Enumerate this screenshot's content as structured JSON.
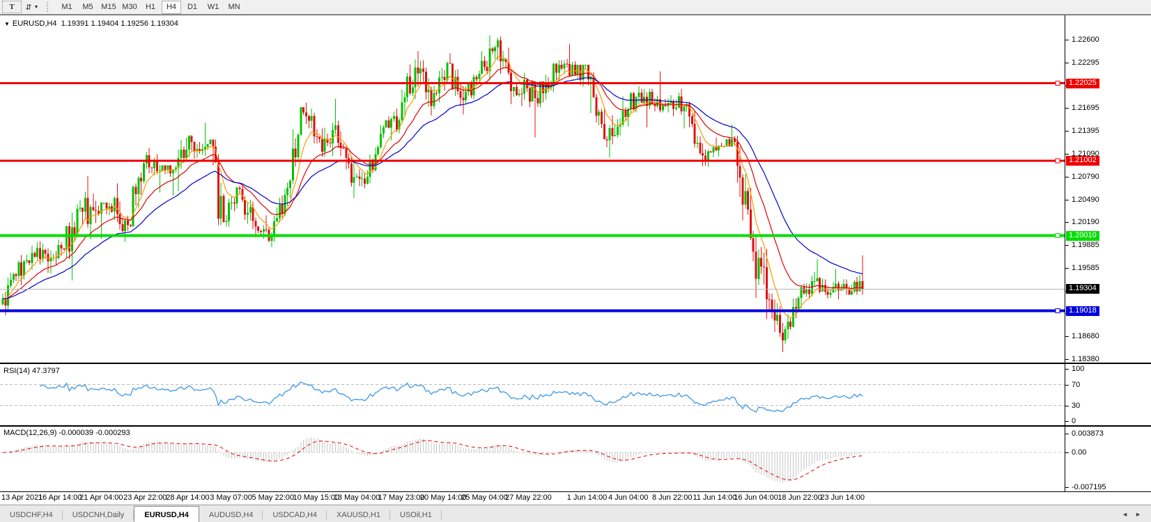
{
  "toolbar": {
    "text_tool_label": "T",
    "arrange_icon": "double-arrow",
    "timeframes": [
      "M1",
      "M5",
      "M15",
      "M30",
      "H1",
      "H4",
      "D1",
      "W1",
      "MN"
    ],
    "active_timeframe": "H4"
  },
  "chart_header": {
    "symbol": "EURUSD,H4",
    "ohlc": "1.19391 1.19404 1.19256 1.19304",
    "open": "1.19391",
    "high": "1.19404",
    "low": "1.19256",
    "close": "1.19304"
  },
  "price_axis": {
    "ticks": [
      "1.22600",
      "1.22295",
      "1.21995",
      "1.21695",
      "1.21395",
      "1.21090",
      "1.20790",
      "1.20490",
      "1.20190",
      "1.19885",
      "1.19585",
      "1.19285",
      "1.18985",
      "1.18680",
      "1.18380"
    ]
  },
  "rsi_panel": {
    "label": "RSI(14) 47.3797",
    "ticks": [
      "100",
      "70",
      "30",
      "0"
    ]
  },
  "macd_panel": {
    "label": "MACD(12,26,9) -0.000039 -0.000293",
    "ticks": [
      "0.003873",
      "0.00",
      "-0.007195"
    ]
  },
  "time_axis": {
    "labels": [
      "13 Apr 2021",
      "16 Apr 14:00",
      "21 Apr 04:00",
      "23 Apr 22:00",
      "28 Apr 14:00",
      "3 May 07:00",
      "5 May 22:00",
      "10 May 15:00",
      "13 May 04:00",
      "17 May 23:00",
      "20 May 14:00",
      "25 May 04:00",
      "27 May 22:00",
      "1 Jun 14:00",
      "4 Jun 04:00",
      "8 Jun 22:00",
      "11 Jun 14:00",
      "16 Jun 04:00",
      "18 Jun 22:00",
      "23 Jun 14:00"
    ],
    "bar_positions": [
      0,
      21.5,
      37,
      53.5,
      69.5,
      85.75,
      101.5,
      117.75,
      133,
      149.75,
      165.5,
      181,
      197.5,
      219.5,
      235,
      251.5,
      267.5,
      283,
      299.5,
      315.5
    ]
  },
  "tabs": {
    "items": [
      {
        "label": "USDCHF,H4",
        "active": false
      },
      {
        "label": "USDCNH,Daily",
        "active": false
      },
      {
        "label": "EURUSD,H4",
        "active": true
      },
      {
        "label": "AUDUSD,H4",
        "active": false
      },
      {
        "label": "USDCAD,H4",
        "active": false
      },
      {
        "label": "XAUUSD,H1",
        "active": false
      },
      {
        "label": "USOil,H1",
        "active": false
      }
    ],
    "scroll_left": "◄",
    "scroll_right": "►"
  },
  "chart_data": [
    {
      "type": "candlestick",
      "symbol": "EURUSD",
      "timeframe": "H4",
      "bars_per_day": 6,
      "up_color": "#00c200",
      "down_color": "#e01010",
      "open_start": 1.191,
      "daily_anchors": [
        [
          "13 Apr",
          1.1952,
          1.1896,
          1.1948
        ],
        [
          "14 Apr",
          1.1988,
          1.1936,
          1.1978
        ],
        [
          "15 Apr",
          1.1994,
          1.1952,
          1.1967
        ],
        [
          "16 Apr",
          1.1996,
          1.1951,
          1.1983
        ],
        [
          "19 Apr",
          1.2048,
          1.1942,
          1.2038
        ],
        [
          "20 Apr",
          1.208,
          1.1996,
          1.2034
        ],
        [
          "21 Apr",
          1.2045,
          1.1997,
          1.2033
        ],
        [
          "22 Apr",
          1.207,
          1.1993,
          1.2015
        ],
        [
          "23 Apr",
          1.21,
          1.2012,
          1.2097
        ],
        [
          "26 Apr",
          1.2117,
          1.2058,
          1.2087
        ],
        [
          "27 Apr",
          1.2094,
          1.2054,
          1.2091
        ],
        [
          "28 Apr",
          1.2134,
          1.206,
          1.2125
        ],
        [
          "29 Apr",
          1.215,
          1.2103,
          1.2122
        ],
        [
          "30 Apr",
          1.2128,
          1.2015,
          1.2019
        ],
        [
          "3 May",
          1.2067,
          1.2013,
          1.2063
        ],
        [
          "4 May",
          1.2067,
          1.1999,
          1.2013
        ],
        [
          "5 May",
          1.2028,
          1.1986,
          1.2003
        ],
        [
          "6 May",
          1.2071,
          1.1993,
          1.2064
        ],
        [
          "7 May",
          1.2171,
          1.2051,
          1.2164
        ],
        [
          "10 May",
          1.2177,
          1.2123,
          1.2129
        ],
        [
          "11 May",
          1.2182,
          1.2105,
          1.2147
        ],
        [
          "12 May",
          1.2153,
          1.2066,
          1.2071
        ],
        [
          "13 May",
          1.21,
          1.2051,
          1.2079
        ],
        [
          "14 May",
          1.2147,
          1.207,
          1.2144
        ],
        [
          "17 May",
          1.2169,
          1.2127,
          1.2154
        ],
        [
          "18 May",
          1.2234,
          1.2149,
          1.2223
        ],
        [
          "19 May",
          1.2245,
          1.216,
          1.2172
        ],
        [
          "20 May",
          1.2231,
          1.2168,
          1.2229
        ],
        [
          "21 May",
          1.2242,
          1.2161,
          1.218
        ],
        [
          "24 May",
          1.2219,
          1.2175,
          1.2215
        ],
        [
          "25 May",
          1.2266,
          1.2206,
          1.225
        ],
        [
          "26 May",
          1.2264,
          1.2175,
          1.2192
        ],
        [
          "27 May",
          1.2216,
          1.2172,
          1.2196
        ],
        [
          "28 May",
          1.2205,
          1.2131,
          1.2189
        ],
        [
          "31 May",
          1.2233,
          1.2181,
          1.2227
        ],
        [
          "1 Jun",
          1.2254,
          1.2212,
          1.2214
        ],
        [
          "2 Jun",
          1.2227,
          1.2163,
          1.2211
        ],
        [
          "3 Jun",
          1.2217,
          1.2118,
          1.2127
        ],
        [
          "4 Jun",
          1.2185,
          1.2104,
          1.2166
        ],
        [
          "7 Jun",
          1.2199,
          1.2145,
          1.219
        ],
        [
          "8 Jun",
          1.2195,
          1.2144,
          1.2172
        ],
        [
          "9 Jun",
          1.2218,
          1.2164,
          1.2178
        ],
        [
          "10 Jun",
          1.2195,
          1.2143,
          1.2175
        ],
        [
          "11 Jun",
          1.2178,
          1.2093,
          1.2107
        ],
        [
          "14 Jun",
          1.2131,
          1.2092,
          1.212
        ],
        [
          "15 Jun",
          1.2148,
          1.2119,
          1.2125
        ],
        [
          "16 Jun",
          1.2133,
          1.1995,
          1.1998
        ],
        [
          "17 Jun",
          1.2007,
          1.1891,
          1.1917
        ],
        [
          "18 Jun",
          1.1925,
          1.1847,
          1.1863
        ],
        [
          "21 Jun",
          1.1921,
          1.1858,
          1.1919
        ],
        [
          "22 Jun",
          1.1953,
          1.1905,
          1.1941
        ],
        [
          "23 Jun",
          1.197,
          1.1918,
          1.1926
        ],
        [
          "24 Jun",
          1.1957,
          1.1917,
          1.193
        ],
        [
          "25 Jun",
          1.1975,
          1.1923,
          1.19304
        ]
      ],
      "moving_averages": [
        {
          "period": 8,
          "color": "#ff9900"
        },
        {
          "period": 20,
          "color": "#e00000"
        },
        {
          "period": 40,
          "color": "#0000cc"
        }
      ],
      "hlines": [
        {
          "label": "1.22025",
          "price": 1.22025,
          "color": "#ee0000",
          "width": 3
        },
        {
          "label": "1.21002",
          "price": 1.21002,
          "color": "#ee0000",
          "width": 3
        },
        {
          "label": "1.20010",
          "price": 1.2001,
          "color": "#00dd00",
          "width": 4
        },
        {
          "label": "1.19018",
          "price": 1.19018,
          "color": "#0000dd",
          "width": 4
        }
      ],
      "current_price": {
        "label": "1.19304",
        "value": 1.19304,
        "line_color": "#b4b4b4",
        "label_bg": "#000000"
      }
    },
    {
      "type": "line",
      "name": "RSI",
      "period": 14,
      "current_value": 47.3797,
      "range": [
        0,
        100
      ],
      "levels": [
        70,
        30
      ],
      "color": "#3c97e8"
    },
    {
      "type": "macd",
      "name": "MACD",
      "fast": 12,
      "slow": 26,
      "signal": 9,
      "current_values": [
        -3.9e-05,
        -0.000293
      ],
      "scale_max": 0.003873,
      "scale_min": -0.007195,
      "histogram_color": "#c6c6c6",
      "signal_color": "#e00000"
    }
  ]
}
